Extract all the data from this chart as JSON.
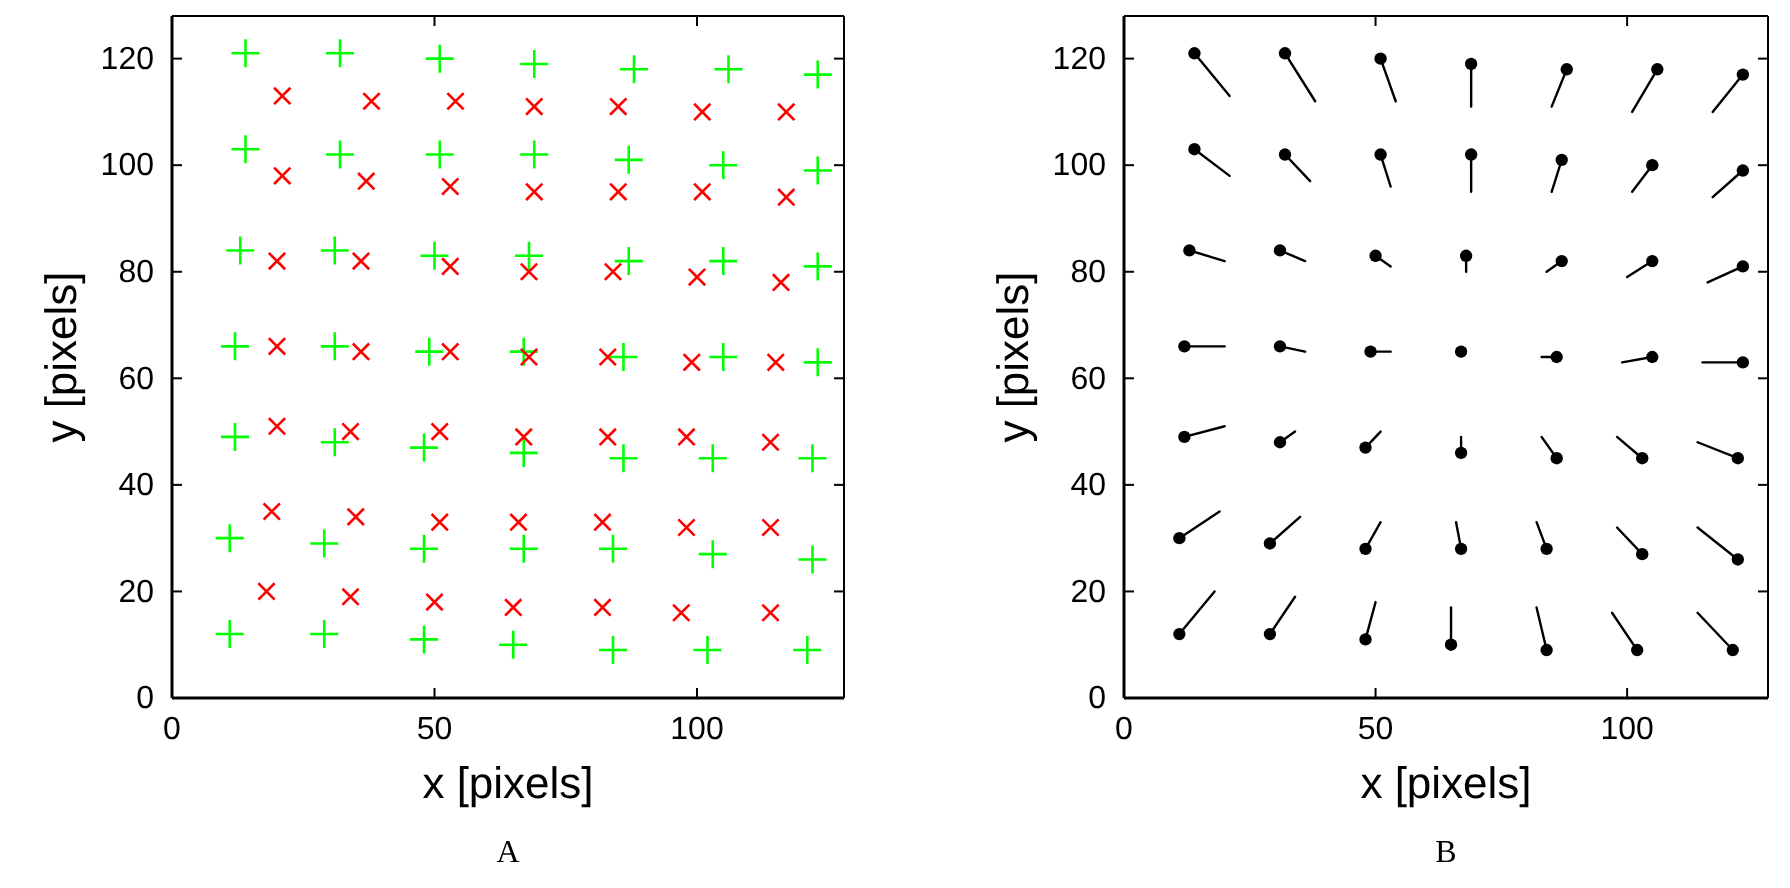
{
  "chart_data": [
    {
      "type": "scatter",
      "xlabel": "x [pixels]",
      "ylabel": "y [pixels]",
      "annotations": [
        "A"
      ],
      "xlim": [
        0,
        128
      ],
      "ylim": [
        0,
        128
      ],
      "xticks": [
        0,
        50,
        100
      ],
      "yticks": [
        0,
        20,
        40,
        60,
        80,
        100,
        120
      ],
      "grid": false,
      "series": [
        {
          "color": "#00ff00",
          "x": [
            14,
            32,
            51,
            69,
            88,
            106,
            123,
            14,
            32,
            51,
            69,
            87,
            105,
            123,
            13,
            31,
            50,
            68,
            87,
            105,
            123,
            12,
            31,
            49,
            67,
            86,
            105,
            123,
            12,
            31,
            48,
            67,
            86,
            103,
            122,
            11,
            29,
            48,
            67,
            84,
            103,
            122,
            11,
            29,
            48,
            65,
            84,
            102,
            121
          ],
          "values": [
            121,
            121,
            120,
            119,
            118,
            118,
            117,
            103,
            102,
            102,
            102,
            101,
            100,
            99,
            84,
            84,
            83,
            83,
            82,
            82,
            81,
            66,
            66,
            65,
            65,
            64,
            64,
            63,
            49,
            48,
            47,
            46,
            45,
            45,
            45,
            30,
            29,
            28,
            28,
            28,
            27,
            26,
            12,
            12,
            11,
            10,
            9,
            9,
            9
          ]
        },
        {
          "marker": "cross",
          "color": "#ff0000",
          "x": [
            21,
            38,
            54,
            69,
            85,
            101,
            117,
            21,
            37,
            53,
            69,
            85,
            101,
            117,
            20,
            36,
            53,
            68,
            84,
            100,
            116,
            20,
            36,
            53,
            68,
            83,
            99,
            115,
            20,
            34,
            51,
            67,
            83,
            98,
            114,
            19,
            35,
            51,
            66,
            82,
            98,
            114,
            18,
            34,
            50,
            65,
            82,
            97,
            114
          ],
          "values": [
            113,
            112,
            112,
            111,
            111,
            110,
            110,
            98,
            97,
            96,
            95,
            95,
            95,
            94,
            82,
            82,
            81,
            80,
            80,
            79,
            78,
            66,
            65,
            65,
            64,
            64,
            63,
            63,
            51,
            50,
            50,
            49,
            49,
            49,
            48,
            35,
            34,
            33,
            33,
            33,
            32,
            32,
            20,
            19,
            18,
            17,
            17,
            16,
            16
          ]
        }
      ]
    },
    {
      "type": "scatter",
      "xlabel": "x [pixels]",
      "ylabel": "y [pixels]",
      "annotations": [
        "B"
      ],
      "xlim": [
        0,
        128
      ],
      "ylim": [
        0,
        128
      ],
      "xticks": [
        0,
        50,
        100
      ],
      "yticks": [
        0,
        20,
        40,
        60,
        80,
        100,
        120
      ],
      "grid": false,
      "series": [
        {
          "type": "line",
          "color": "#000000",
          "x": [
            14,
            21
          ],
          "values": [
            121,
            113
          ]
        },
        {
          "type": "line",
          "color": "#000000",
          "x": [
            32,
            38
          ],
          "values": [
            121,
            112
          ]
        },
        {
          "type": "line",
          "color": "#000000",
          "x": [
            51,
            54
          ],
          "values": [
            120,
            112
          ]
        },
        {
          "type": "line",
          "color": "#000000",
          "x": [
            69,
            69
          ],
          "values": [
            119,
            111
          ]
        },
        {
          "type": "line",
          "color": "#000000",
          "x": [
            88,
            85
          ],
          "values": [
            118,
            111
          ]
        },
        {
          "type": "line",
          "color": "#000000",
          "x": [
            106,
            101
          ],
          "values": [
            118,
            110
          ]
        },
        {
          "type": "line",
          "color": "#000000",
          "x": [
            123,
            117
          ],
          "values": [
            117,
            110
          ]
        },
        {
          "type": "line",
          "color": "#000000",
          "x": [
            14,
            21
          ],
          "values": [
            103,
            98
          ]
        },
        {
          "type": "line",
          "color": "#000000",
          "x": [
            32,
            37
          ],
          "values": [
            102,
            97
          ]
        },
        {
          "type": "line",
          "color": "#000000",
          "x": [
            51,
            53
          ],
          "values": [
            102,
            96
          ]
        },
        {
          "type": "line",
          "color": "#000000",
          "x": [
            69,
            69
          ],
          "values": [
            102,
            95
          ]
        },
        {
          "type": "line",
          "color": "#000000",
          "x": [
            87,
            85
          ],
          "values": [
            101,
            95
          ]
        },
        {
          "type": "line",
          "color": "#000000",
          "x": [
            105,
            101
          ],
          "values": [
            100,
            95
          ]
        },
        {
          "type": "line",
          "color": "#000000",
          "x": [
            123,
            117
          ],
          "values": [
            99,
            94
          ]
        },
        {
          "type": "line",
          "color": "#000000",
          "x": [
            13,
            20
          ],
          "values": [
            84,
            82
          ]
        },
        {
          "type": "line",
          "color": "#000000",
          "x": [
            31,
            36
          ],
          "values": [
            84,
            82
          ]
        },
        {
          "type": "line",
          "color": "#000000",
          "x": [
            50,
            53
          ],
          "values": [
            83,
            81
          ]
        },
        {
          "type": "line",
          "color": "#000000",
          "x": [
            68,
            68
          ],
          "values": [
            83,
            80
          ]
        },
        {
          "type": "line",
          "color": "#000000",
          "x": [
            87,
            84
          ],
          "values": [
            82,
            80
          ]
        },
        {
          "type": "line",
          "color": "#000000",
          "x": [
            105,
            100
          ],
          "values": [
            82,
            79
          ]
        },
        {
          "type": "line",
          "color": "#000000",
          "x": [
            123,
            116
          ],
          "values": [
            81,
            78
          ]
        },
        {
          "type": "line",
          "color": "#000000",
          "x": [
            12,
            20
          ],
          "values": [
            66,
            66
          ]
        },
        {
          "type": "line",
          "color": "#000000",
          "x": [
            31,
            36
          ],
          "values": [
            66,
            65
          ]
        },
        {
          "type": "line",
          "color": "#000000",
          "x": [
            49,
            53
          ],
          "values": [
            65,
            65
          ]
        },
        {
          "type": "line",
          "color": "#000000",
          "x": [
            86,
            83
          ],
          "values": [
            64,
            64
          ]
        },
        {
          "type": "line",
          "color": "#000000",
          "x": [
            105,
            99
          ],
          "values": [
            64,
            63
          ]
        },
        {
          "type": "line",
          "color": "#000000",
          "x": [
            123,
            115
          ],
          "values": [
            63,
            63
          ]
        },
        {
          "type": "line",
          "color": "#000000",
          "x": [
            12,
            20
          ],
          "values": [
            49,
            51
          ]
        },
        {
          "type": "line",
          "color": "#000000",
          "x": [
            31,
            34
          ],
          "values": [
            48,
            50
          ]
        },
        {
          "type": "line",
          "color": "#000000",
          "x": [
            48,
            51
          ],
          "values": [
            47,
            50
          ]
        },
        {
          "type": "line",
          "color": "#000000",
          "x": [
            67,
            67
          ],
          "values": [
            46,
            49
          ]
        },
        {
          "type": "line",
          "color": "#000000",
          "x": [
            86,
            83
          ],
          "values": [
            45,
            49
          ]
        },
        {
          "type": "line",
          "color": "#000000",
          "x": [
            103,
            98
          ],
          "values": [
            45,
            49
          ]
        },
        {
          "type": "line",
          "color": "#000000",
          "x": [
            122,
            114
          ],
          "values": [
            45,
            48
          ]
        },
        {
          "type": "line",
          "color": "#000000",
          "x": [
            11,
            19
          ],
          "values": [
            30,
            35
          ]
        },
        {
          "type": "line",
          "color": "#000000",
          "x": [
            29,
            35
          ],
          "values": [
            29,
            34
          ]
        },
        {
          "type": "line",
          "color": "#000000",
          "x": [
            48,
            51
          ],
          "values": [
            28,
            33
          ]
        },
        {
          "type": "line",
          "color": "#000000",
          "x": [
            67,
            66
          ],
          "values": [
            28,
            33
          ]
        },
        {
          "type": "line",
          "color": "#000000",
          "x": [
            84,
            82
          ],
          "values": [
            28,
            33
          ]
        },
        {
          "type": "line",
          "color": "#000000",
          "x": [
            103,
            98
          ],
          "values": [
            27,
            32
          ]
        },
        {
          "type": "line",
          "color": "#000000",
          "x": [
            122,
            114
          ],
          "values": [
            26,
            32
          ]
        },
        {
          "type": "line",
          "color": "#000000",
          "x": [
            11,
            18
          ],
          "values": [
            12,
            20
          ]
        },
        {
          "type": "line",
          "color": "#000000",
          "x": [
            29,
            34
          ],
          "values": [
            12,
            19
          ]
        },
        {
          "type": "line",
          "color": "#000000",
          "x": [
            48,
            50
          ],
          "values": [
            11,
            18
          ]
        },
        {
          "type": "line",
          "color": "#000000",
          "x": [
            65,
            65
          ],
          "values": [
            10,
            17
          ]
        },
        {
          "type": "line",
          "color": "#000000",
          "x": [
            84,
            82
          ],
          "values": [
            9,
            17
          ]
        },
        {
          "type": "line",
          "color": "#000000",
          "x": [
            102,
            97
          ],
          "values": [
            9,
            16
          ]
        },
        {
          "type": "line",
          "color": "#000000",
          "x": [
            121,
            114
          ],
          "values": [
            9,
            16
          ]
        },
        {
          "marker": "circle",
          "color": "#000000",
          "x": [
            14,
            32,
            51,
            69,
            88,
            106,
            123,
            14,
            32,
            51,
            69,
            87,
            105,
            123,
            13,
            31,
            50,
            68,
            87,
            105,
            123,
            12,
            31,
            49,
            67,
            86,
            105,
            123,
            12,
            31,
            48,
            67,
            86,
            103,
            122,
            11,
            29,
            48,
            67,
            84,
            103,
            122,
            11,
            29,
            48,
            65,
            84,
            102,
            121
          ],
          "values": [
            121,
            121,
            120,
            119,
            118,
            118,
            117,
            103,
            102,
            102,
            102,
            101,
            100,
            99,
            84,
            84,
            83,
            83,
            82,
            82,
            81,
            66,
            66,
            65,
            65,
            64,
            64,
            63,
            49,
            48,
            47,
            46,
            45,
            45,
            45,
            30,
            29,
            28,
            28,
            28,
            27,
            26,
            12,
            12,
            11,
            10,
            9,
            9,
            9
          ]
        }
      ]
    }
  ]
}
